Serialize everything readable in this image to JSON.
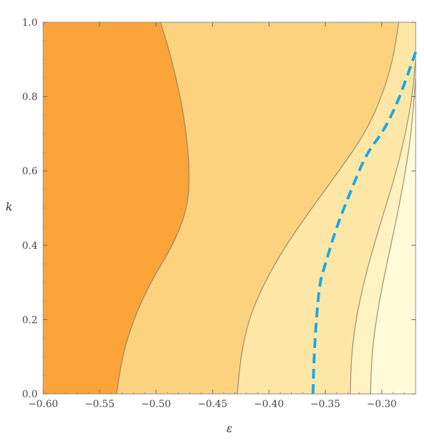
{
  "chart_data": {
    "type": "contour",
    "title": "",
    "xlabel": "ε",
    "ylabel": "k",
    "xlim": [
      -0.6,
      -0.27
    ],
    "ylim": [
      0.0,
      1.0
    ],
    "xticks": [
      -0.6,
      -0.55,
      -0.5,
      -0.45,
      -0.4,
      -0.35,
      -0.3
    ],
    "xtick_labels": [
      "−0.60",
      "−0.55",
      "−0.50",
      "−0.45",
      "−0.40",
      "−0.35",
      "−0.30"
    ],
    "yticks": [
      0.0,
      0.2,
      0.4,
      0.6,
      0.8,
      1.0
    ],
    "ytick_labels": [
      "0.0",
      "0.2",
      "0.4",
      "0.6",
      "0.8",
      "1.0"
    ],
    "grid": false,
    "legend": "none",
    "region_colors": [
      "#fba43a",
      "#fcb75c",
      "#fdd27f",
      "#fee7a6",
      "#fef2c3",
      "#fffad7"
    ],
    "contour_color": "#8a7a5f",
    "contours": [
      {
        "x": [
          -0.535,
          -0.53,
          -0.52,
          -0.505,
          -0.485,
          -0.472,
          -0.47,
          -0.475,
          -0.486,
          -0.496
        ],
        "y": [
          0.0,
          0.1,
          0.2,
          0.3,
          0.4,
          0.5,
          0.6,
          0.75,
          0.9,
          1.0
        ]
      },
      {
        "x": [
          -0.428,
          -0.425,
          -0.418,
          -0.404,
          -0.385,
          -0.362,
          -0.338,
          -0.315,
          -0.3,
          -0.29,
          -0.285
        ],
        "y": [
          0.0,
          0.1,
          0.2,
          0.3,
          0.4,
          0.5,
          0.6,
          0.7,
          0.8,
          0.9,
          1.0
        ]
      },
      {
        "x": [
          -0.328,
          -0.327,
          -0.323,
          -0.316,
          -0.307,
          -0.297,
          -0.287,
          -0.279,
          -0.273,
          -0.27
        ],
        "y": [
          0.0,
          0.1,
          0.2,
          0.3,
          0.4,
          0.5,
          0.6,
          0.7,
          0.8,
          0.9
        ]
      },
      {
        "x": [
          -0.31,
          -0.309,
          -0.305,
          -0.299,
          -0.292,
          -0.285,
          -0.279,
          -0.274,
          -0.27
        ],
        "y": [
          0.0,
          0.1,
          0.2,
          0.3,
          0.4,
          0.5,
          0.6,
          0.7,
          0.85
        ]
      }
    ],
    "dashed_curve": {
      "color": "#1aa7e8",
      "x": [
        -0.361,
        -0.36,
        -0.358,
        -0.355,
        -0.35,
        -0.34,
        -0.327,
        -0.313,
        -0.3,
        -0.288,
        -0.278,
        -0.27
      ],
      "y": [
        0.0,
        0.1,
        0.2,
        0.3,
        0.35,
        0.45,
        0.55,
        0.65,
        0.7,
        0.77,
        0.85,
        0.92
      ]
    }
  }
}
